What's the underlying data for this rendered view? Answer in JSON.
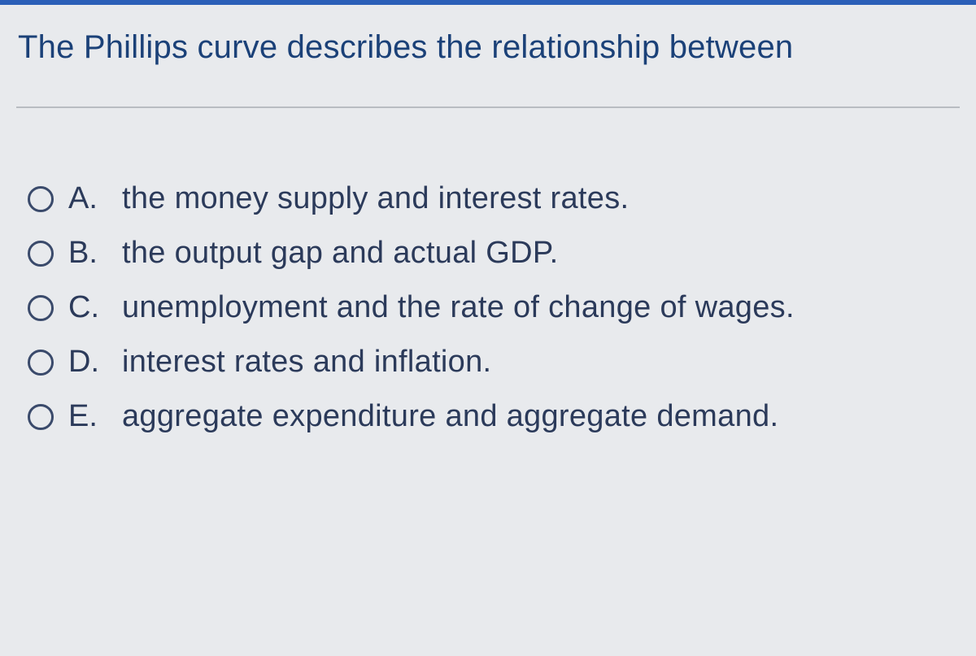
{
  "question": {
    "prompt": "The Phillips curve describes the relationship between",
    "prompt_color": "#1b4178",
    "prompt_fontsize": 40
  },
  "options": [
    {
      "letter": "A.",
      "text": "the money supply and interest rates."
    },
    {
      "letter": "B.",
      "text": "the output gap and actual GDP."
    },
    {
      "letter": "C.",
      "text": "unemployment and the rate of change of wages."
    },
    {
      "letter": "D.",
      "text": "interest rates and inflation."
    },
    {
      "letter": "E.",
      "text": "aggregate expenditure and aggregate demand."
    }
  ],
  "styling": {
    "background_color": "#e8eaed",
    "top_border_color": "#2b5fb8",
    "divider_color": "#b8bcc2",
    "option_text_color": "#2b3a5a",
    "radio_border_color": "#3a4a6b",
    "option_fontsize": 38
  }
}
